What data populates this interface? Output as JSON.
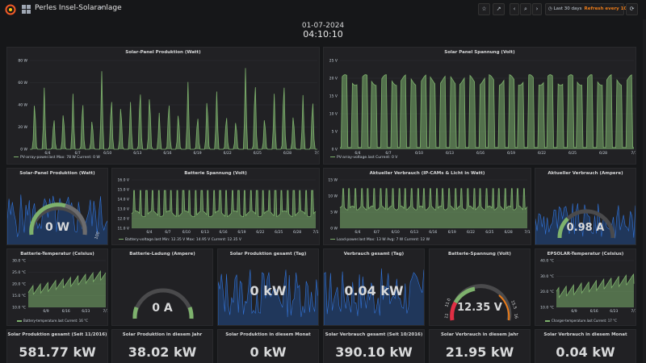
{
  "topbar": {
    "dashboard_title": "Perles Insel-Solaranlage",
    "time_range": "Last 30 days",
    "refresh": "Refresh every 10s"
  },
  "clock": {
    "date": "01-07-2024",
    "time": "04:10:10"
  },
  "colors": {
    "green": "#7eb26d",
    "blue": "#1f60c4",
    "orange": "#eb7b18",
    "panel_bg": "#212124",
    "page_bg": "#161719"
  },
  "x_ticks": [
    "6/4",
    "6/7",
    "6/10",
    "6/13",
    "6/16",
    "6/19",
    "6/22",
    "6/25",
    "6/28",
    "7/1"
  ],
  "panels": {
    "solar_power": {
      "title": "Solar-Panel Produktion (Watt)",
      "legend": "PV-array-power.last   Max: 78 W   Current: 0 W",
      "y_ticks": [
        "80 W",
        "60 W",
        "40 W",
        "20 W",
        "0 W"
      ]
    },
    "solar_voltage": {
      "title": "Solar Panel Spannung (Volt)",
      "legend": "PV-array-voltage.last   Current: 0 V",
      "y_ticks": [
        "25 V",
        "20 V",
        "15 V",
        "10 V",
        "5 V",
        "0 V"
      ]
    },
    "solar_gauge": {
      "title": "Solar-Panel Produktion (Watt)",
      "value": "0 W",
      "max_label": "100"
    },
    "battery_voltage": {
      "title": "Batterie Spannung (Volt)",
      "legend": "Battery-voltage.last   Min: 12.35 V   Max: 14.95 V   Current: 12.35 V",
      "y_ticks": [
        "16.0 V",
        "15.0 V",
        "14.0 V",
        "13.0 V",
        "12.0 V",
        "11.0 V"
      ]
    },
    "consumption_watt": {
      "title": "Aktueller Verbrauch (IP-CAMs & Licht in Watt)",
      "legend": "Load-power.last   Max: 13 W   Avg: 7 W   Current: 12 W",
      "y_ticks": [
        "15 W",
        "10 W",
        "5 W",
        "0 W"
      ]
    },
    "consumption_amp": {
      "title": "Aktueller Verbrauch (Ampere)",
      "value": "0.98 A"
    },
    "battery_temp": {
      "title": "Batterie-Temperatur (Celsius)",
      "legend": "Battery-temperature.last   Current: 16 °C",
      "y_ticks": [
        "30.0 °C",
        "25.0 °C",
        "20.0 °C",
        "15.0 °C",
        "10.0 °C"
      ],
      "x_ticks": [
        "6/9",
        "6/16",
        "6/23",
        "7/1"
      ]
    },
    "battery_charge": {
      "title": "Batterie-Ladung (Ampere)",
      "value": "0 A"
    },
    "production_day": {
      "title": "Solar Produktion gesamt (Tag)",
      "value": "0 kW"
    },
    "consumption_day": {
      "title": "Verbrauch gesamt (Tag)",
      "value": "0.04 kW"
    },
    "battery_gauge": {
      "title": "Batterie-Spannung (Volt)",
      "value": "12.35 V",
      "t1": "11.0",
      "t2": "11",
      "t3": "15.5",
      "t4": "16"
    },
    "epsolar_temp": {
      "title": "EPSOLAR-Temperatur (Celsius)",
      "legend": "Charger-temperature.last   Current: 17 °C",
      "y_ticks": [
        "40.0 °C",
        "30.0 °C",
        "20.0 °C",
        "10.0 °C"
      ],
      "x_ticks": [
        "6/9",
        "6/16",
        "6/23",
        "7/1"
      ]
    }
  },
  "stats": [
    {
      "title": "Solar Produktion gesamt (Seit 11/2016)",
      "value": "581.77 kW"
    },
    {
      "title": "Solar Produktion in diesem Jahr",
      "value": "38.02 kW"
    },
    {
      "title": "Solar Produktion in diesem Monat",
      "value": "0 kW"
    },
    {
      "title": "Solar Verbrauch gesamt (Seit 10/2016)",
      "value": "390.10 kW"
    },
    {
      "title": "Solar Verbrauch in diesem Jahr",
      "value": "21.95 kW"
    },
    {
      "title": "Solar Verbrauch in diesem Monat",
      "value": "0.04 kW"
    }
  ]
}
